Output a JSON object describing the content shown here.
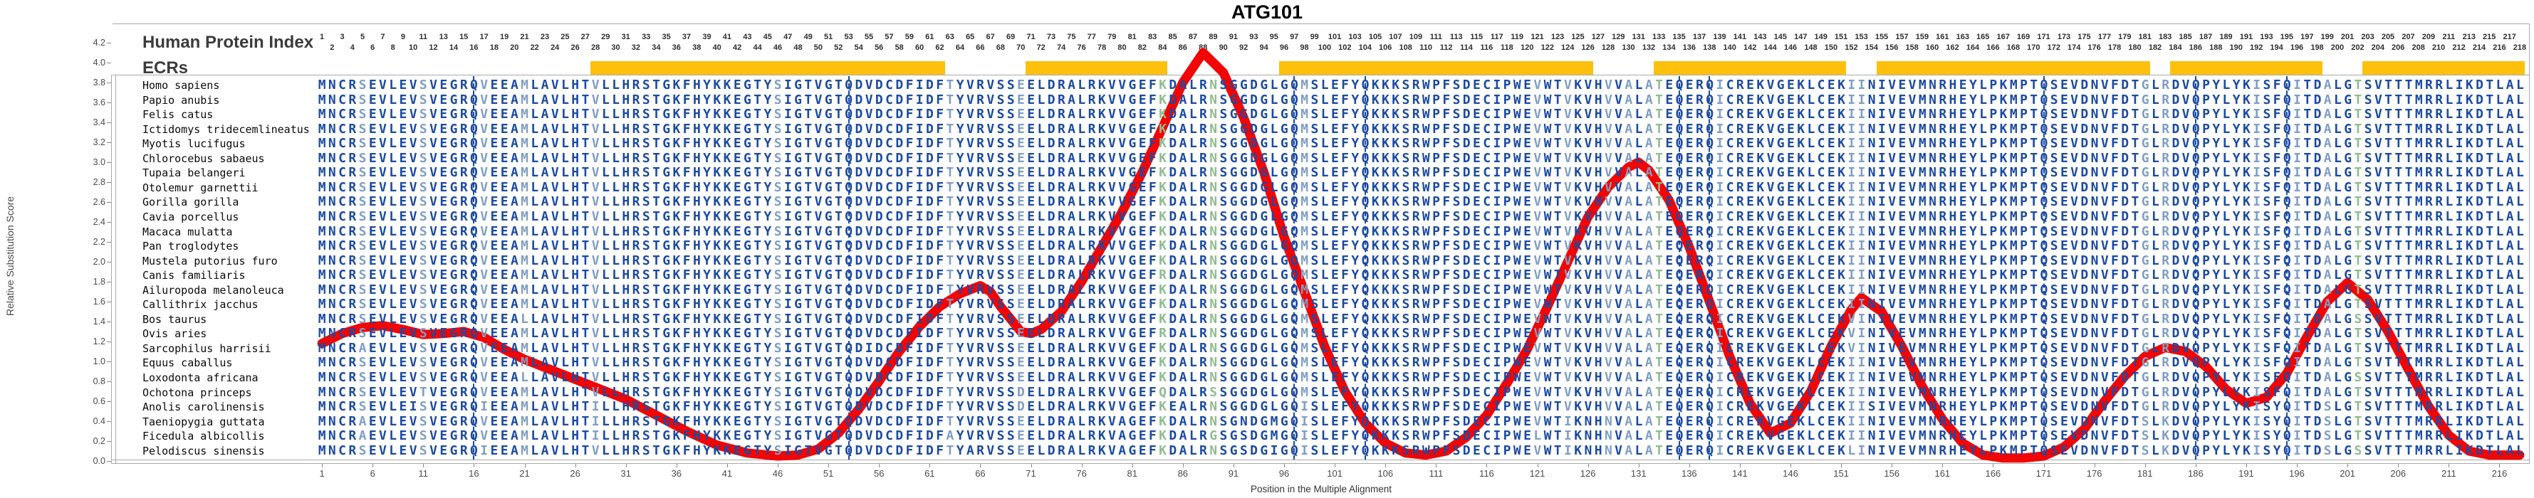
{
  "title": "ATG101",
  "y_axis": {
    "label": "Relative Substitution Score",
    "ticks": [
      "0.0",
      "0.2",
      "0.4",
      "0.6",
      "0.8",
      "1.0",
      "1.2",
      "1.4",
      "1.6",
      "1.8",
      "2.0",
      "2.2",
      "2.4",
      "2.6",
      "2.8",
      "3.0",
      "3.2",
      "3.4",
      "3.6",
      "3.8",
      "4.0",
      "4.2"
    ]
  },
  "x_axis": {
    "label": "Position in the Multiple Alignment",
    "ticks": [
      1,
      6,
      11,
      16,
      21,
      26,
      31,
      36,
      41,
      46,
      51,
      56,
      61,
      66,
      71,
      76,
      81,
      86,
      91,
      96,
      101,
      106,
      111,
      116,
      121,
      126,
      131,
      136,
      141,
      146,
      151,
      156,
      161,
      166,
      171,
      176,
      181,
      186,
      191,
      196,
      201,
      206,
      211,
      216
    ]
  },
  "index_row": {
    "label": "Human Protein Index",
    "start": 1,
    "end": 218
  },
  "ecr": {
    "label": "ECRs",
    "color": "#FDC10D",
    "segments": [
      [
        28,
        62
      ],
      [
        71,
        84
      ],
      [
        96,
        126
      ],
      [
        133,
        151
      ],
      [
        155,
        181
      ],
      [
        184,
        198
      ],
      [
        203,
        218
      ]
    ]
  },
  "alignment": {
    "columns": 218,
    "colors": {
      "dark": "#1b4aa2",
      "light": "#7f9ec5",
      "green": "#8fbc8f",
      "curve": "#F10505"
    },
    "green_columns": [
      84,
      89,
      133,
      202
    ],
    "light_columns": [
      5,
      11,
      17,
      21,
      28,
      46,
      63,
      70,
      98,
      121,
      124,
      128,
      130,
      132,
      139,
      152,
      153,
      181,
      183,
      192,
      196,
      199
    ],
    "q_guide_columns": [
      16,
      53,
      97,
      104,
      135,
      138,
      171,
      186,
      195
    ],
    "base_sequence": "MNCRSEVLEVSVEGRQVEEAMLAVLHTVLLHRSTGKFHYKKEGTYSIGTVGTQDVDCDFIDFTYVRVSSEELDRALRKVVGEFKDALRNSGGDGLGQMSLEFYQKKKSRWPFSDECIPWEVWTVKVHVVALATEQERQICREKVGEKLCEKIINIVEVMNRHEYLPKMPTQSEVDNVFDTGLRDVQPYLYKISFQITDALGTSVTTTMRRLIKDTLAL",
    "species": [
      {
        "name": "Homo sapiens",
        "variants": {}
      },
      {
        "name": "Papio anubis",
        "variants": {}
      },
      {
        "name": "Felis catus",
        "variants": {}
      },
      {
        "name": "Ictidomys tridecemlineatus",
        "variants": {}
      },
      {
        "name": "Myotis lucifugus",
        "variants": {}
      },
      {
        "name": "Chlorocebus sabaeus",
        "variants": {}
      },
      {
        "name": "Tupaia belangeri",
        "variants": {}
      },
      {
        "name": "Otolemur garnettii",
        "variants": {}
      },
      {
        "name": "Gorilla gorilla",
        "variants": {}
      },
      {
        "name": "Cavia porcellus",
        "variants": {}
      },
      {
        "name": "Macaca mulatta",
        "variants": {}
      },
      {
        "name": "Pan troglodytes",
        "variants": {}
      },
      {
        "name": "Mustela putorius furo",
        "variants": {}
      },
      {
        "name": "Canis familiaris",
        "variants": {
          "84": "R"
        }
      },
      {
        "name": "Ailuropoda melanoleuca",
        "variants": {}
      },
      {
        "name": "Callithrix jacchus",
        "variants": {}
      },
      {
        "name": "Bos taurus",
        "variants": {
          "21": "L",
          "152": "V",
          "202": "S"
        }
      },
      {
        "name": "Ovis aries",
        "variants": {
          "84": "R",
          "152": "V"
        }
      },
      {
        "name": "Sarcophilus harrisii",
        "variants": {
          "5": "A",
          "55": "I",
          "152": "V"
        }
      },
      {
        "name": "Equus caballus",
        "variants": {}
      },
      {
        "name": "Loxodonta africana",
        "variants": {
          "21": "L",
          "202": "S"
        }
      },
      {
        "name": "Ochotona princeps",
        "variants": {
          "11": "T",
          "70": "D",
          "84": "Q",
          "89": "S"
        }
      },
      {
        "name": "Anolis carolinensis",
        "variants": {
          "10": "I",
          "17": "I",
          "28": "I",
          "70": "D",
          "85": "E",
          "98": "I",
          "154": "S",
          "194": "Y",
          "199": "S"
        }
      },
      {
        "name": "Taeniopygia guttata",
        "variants": {
          "5": "A",
          "28": "I",
          "80": "A",
          "92": "N",
          "95": "M",
          "98": "I",
          "124": "I",
          "126": "N",
          "128": "N",
          "181": "S",
          "183": "K",
          "194": "Y",
          "199": "S"
        }
      },
      {
        "name": "Ficedula albicollis",
        "variants": {
          "5": "A",
          "28": "I",
          "63": "A",
          "80": "A",
          "89": "G",
          "92": "S",
          "95": "M",
          "98": "I",
          "121": "L",
          "124": "I",
          "126": "N",
          "128": "N",
          "181": "S",
          "183": "K",
          "194": "Y",
          "199": "S"
        }
      },
      {
        "name": "Pelodiscus sinensis",
        "variants": {
          "17": "I",
          "65": "A",
          "80": "A",
          "92": "S",
          "95": "I",
          "98": "I",
          "124": "I",
          "126": "N",
          "128": "N",
          "152": "L",
          "181": "S",
          "183": "K",
          "194": "Y",
          "199": "S",
          "202": "S"
        }
      }
    ]
  },
  "chart_data": {
    "type": "line",
    "title": "ATG101",
    "xlabel": "Position in the Multiple Alignment",
    "ylabel": "Relative Substitution Score",
    "xlim": [
      1,
      218
    ],
    "ylim": [
      0,
      4.2
    ],
    "grid": false,
    "legend_position": "none",
    "series": [
      {
        "name": "relative-substitution-score",
        "color": "#F10505",
        "x": [
          1,
          3,
          5,
          7,
          9,
          11,
          13,
          15,
          17,
          19,
          21,
          23,
          25,
          28,
          31,
          34,
          37,
          40,
          43,
          46,
          48,
          50,
          52,
          54,
          56,
          58,
          60,
          62,
          64,
          66,
          67,
          68,
          70,
          71,
          72,
          74,
          76,
          78,
          80,
          82,
          84,
          86,
          88,
          90,
          92,
          94,
          96,
          98,
          100,
          102,
          104,
          106,
          108,
          110,
          112,
          114,
          116,
          118,
          120,
          122,
          124,
          126,
          128,
          130,
          131,
          132,
          134,
          136,
          138,
          140,
          142,
          144,
          146,
          148,
          150,
          152,
          153,
          155,
          157,
          159,
          161,
          163,
          165,
          167,
          169,
          171,
          173,
          175,
          177,
          179,
          181,
          183,
          185,
          187,
          189,
          191,
          193,
          195,
          197,
          199,
          201,
          203,
          205,
          207,
          209,
          211,
          213,
          215,
          217,
          218
        ],
        "y": [
          1.18,
          1.28,
          1.34,
          1.36,
          1.32,
          1.27,
          1.28,
          1.3,
          1.24,
          1.12,
          1.02,
          0.94,
          0.86,
          0.74,
          0.62,
          0.46,
          0.3,
          0.16,
          0.08,
          0.05,
          0.06,
          0.12,
          0.28,
          0.52,
          0.8,
          1.1,
          1.35,
          1.55,
          1.68,
          1.76,
          1.7,
          1.55,
          1.3,
          1.28,
          1.32,
          1.5,
          1.8,
          2.15,
          2.5,
          2.9,
          3.35,
          3.8,
          4.1,
          3.9,
          3.45,
          2.9,
          2.25,
          1.7,
          1.15,
          0.7,
          0.38,
          0.18,
          0.08,
          0.06,
          0.1,
          0.24,
          0.46,
          0.78,
          1.12,
          1.55,
          2.0,
          2.45,
          2.75,
          2.95,
          3.0,
          2.92,
          2.62,
          2.15,
          1.6,
          1.05,
          0.58,
          0.28,
          0.38,
          0.7,
          1.15,
          1.52,
          1.64,
          1.5,
          1.15,
          0.75,
          0.42,
          0.18,
          0.06,
          0.03,
          0.03,
          0.05,
          0.14,
          0.32,
          0.6,
          0.85,
          1.05,
          1.14,
          1.1,
          0.95,
          0.72,
          0.58,
          0.64,
          0.88,
          1.25,
          1.6,
          1.79,
          1.62,
          1.3,
          0.92,
          0.55,
          0.26,
          0.1,
          0.06,
          0.06,
          0.06
        ]
      }
    ],
    "annotations": {
      "ecr_segments_positions": [
        [
          28,
          62
        ],
        [
          71,
          84
        ],
        [
          96,
          126
        ],
        [
          133,
          151
        ],
        [
          155,
          181
        ],
        [
          184,
          198
        ],
        [
          203,
          218
        ]
      ]
    }
  }
}
